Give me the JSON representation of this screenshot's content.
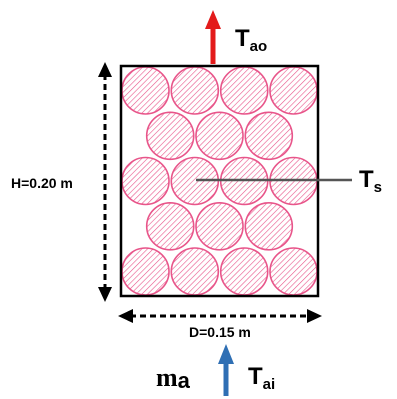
{
  "colors": {
    "particle": "#e8558a",
    "outlet_arrow": "#e31b1b",
    "inlet_arrow": "#2f6fb4",
    "frame": "#000000",
    "probe_line": "#555555"
  },
  "labels": {
    "outlet_temp": {
      "main": "T",
      "sub": "ao"
    },
    "inlet_temp": {
      "main": "T",
      "sub": "ai"
    },
    "solid_temp": {
      "main": "T",
      "sub": "s"
    },
    "mass_flow": {
      "main": "m",
      "sub": "a"
    },
    "height": "H=0.20 m",
    "diameter": "D=0.15 m"
  },
  "packing": {
    "rows": [
      4,
      3,
      4,
      3,
      4
    ]
  }
}
